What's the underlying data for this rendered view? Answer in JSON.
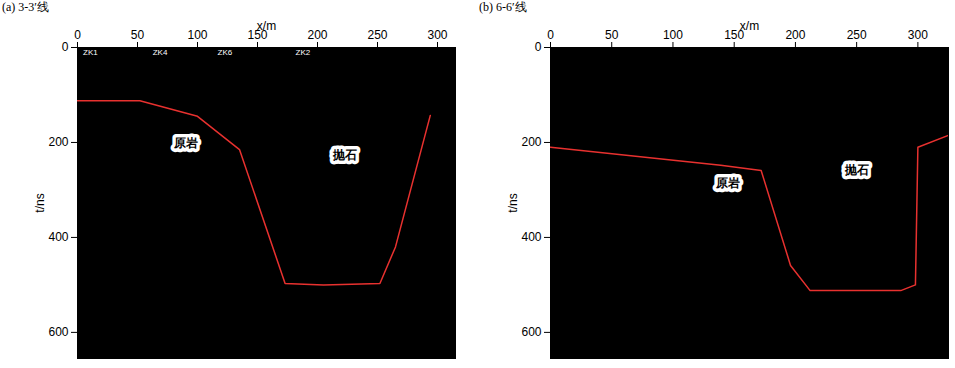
{
  "chart_data": [
    {
      "type": "line",
      "title": "(a) 3-3′线",
      "x_label": "x/m",
      "y_label": "t/ns",
      "xlim": [
        0,
        315
      ],
      "ylim": [
        0,
        655
      ],
      "xticks": [
        0,
        50,
        100,
        150,
        200,
        250,
        300
      ],
      "yticks": [
        0,
        200,
        400,
        600
      ],
      "boundary": {
        "color": "#e8312f",
        "x": [
          0,
          52,
          100,
          135,
          173,
          205,
          252,
          265,
          294
        ],
        "y": [
          112,
          112,
          145,
          215,
          497,
          500,
          497,
          420,
          143
        ]
      },
      "annotations": [
        {
          "text": "原岩",
          "x": 90,
          "y": 202
        },
        {
          "text": "抛石",
          "x": 223,
          "y": 227
        }
      ],
      "boreholes": [
        {
          "text": "ZK1",
          "x": 8
        },
        {
          "text": "ZK4",
          "x": 66
        },
        {
          "text": "ZK6",
          "x": 120
        },
        {
          "text": "ZK2",
          "x": 185
        }
      ]
    },
    {
      "type": "line",
      "title": "(b) 6-6′线",
      "x_label": "x/m",
      "y_label": "t/ns",
      "xlim": [
        0,
        325
      ],
      "ylim": [
        0,
        655
      ],
      "xticks": [
        0,
        50,
        100,
        150,
        200,
        250,
        300
      ],
      "yticks": [
        0,
        200,
        400,
        600
      ],
      "boundary": {
        "color": "#e8312f",
        "x": [
          0,
          139,
          172,
          196,
          212,
          286,
          298,
          300,
          325
        ],
        "y": [
          210,
          248,
          259,
          459,
          512,
          512,
          500,
          210,
          185
        ]
      },
      "annotations": [
        {
          "text": "原岩",
          "x": 145,
          "y": 286
        },
        {
          "text": "抛石",
          "x": 250,
          "y": 259
        }
      ],
      "boreholes": []
    }
  ]
}
